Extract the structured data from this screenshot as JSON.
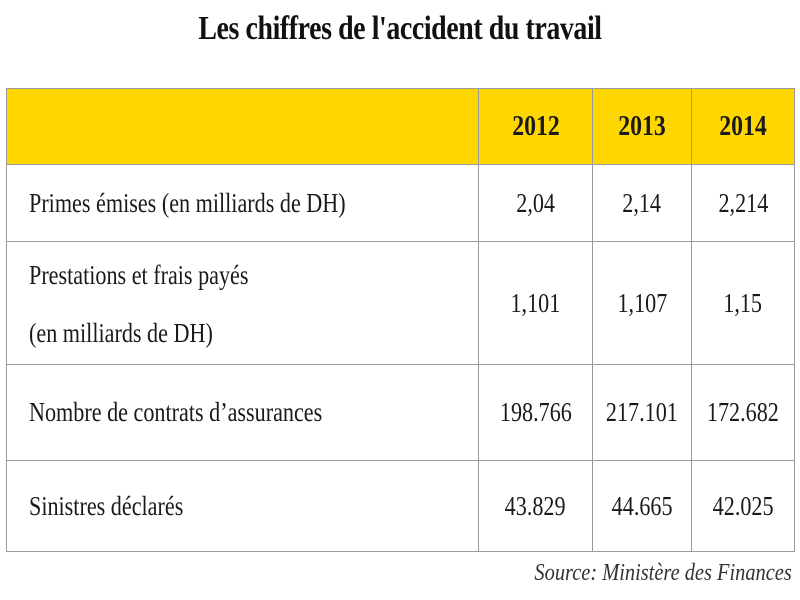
{
  "title": "Les chiffres de l'accident du travail",
  "table": {
    "years": [
      "2012",
      "2013",
      "2014"
    ],
    "rows": [
      {
        "label_line1": "Primes émises  (en milliards de DH)",
        "label_line2": "",
        "values": [
          "2,04",
          "2,14",
          "2,214"
        ]
      },
      {
        "label_line1": "Prestations et frais payés",
        "label_line2": "(en milliards de DH)",
        "values": [
          "1,101",
          "1,107",
          "1,15"
        ]
      },
      {
        "label_line1": "Nombre de  contrats d’assurances",
        "label_line2": "",
        "values": [
          "198.766",
          "217.101",
          "172.682"
        ]
      },
      {
        "label_line1": "Sinistres déclarés",
        "label_line2": "",
        "values": [
          "43.829",
          "44.665",
          "42.025"
        ]
      }
    ],
    "header_color": "#ffd700"
  },
  "source": "Source: Ministère  des Finances"
}
